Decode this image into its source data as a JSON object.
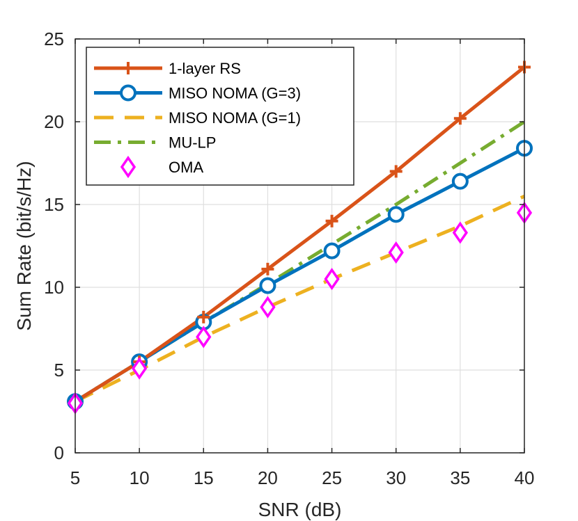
{
  "chart_data": {
    "type": "line",
    "xlabel": "SNR (dB)",
    "ylabel": "Sum Rate (bit/s/Hz)",
    "x": [
      5,
      10,
      15,
      20,
      25,
      30,
      35,
      40
    ],
    "xlim": [
      5,
      40
    ],
    "ylim": [
      0,
      25
    ],
    "xticks": [
      5,
      10,
      15,
      20,
      25,
      30,
      35,
      40
    ],
    "xtick_labels": [
      "5",
      "10",
      "15",
      "20",
      "25",
      "30",
      "35",
      "40"
    ],
    "yticks": [
      0,
      5,
      10,
      15,
      20,
      25
    ],
    "ytick_labels": [
      "0",
      "5",
      "10",
      "15",
      "20",
      "25"
    ],
    "grid": true,
    "legend_position": "top-left",
    "series": [
      {
        "name": "1-layer RS",
        "color": "#D95319",
        "line": "solid",
        "marker": "plus",
        "values": [
          3.1,
          5.5,
          8.2,
          11.1,
          14.0,
          17.0,
          20.2,
          23.3
        ]
      },
      {
        "name": "MISO NOMA (G=3)",
        "color": "#0072BD",
        "line": "solid",
        "marker": "circle",
        "values": [
          3.1,
          5.5,
          7.9,
          10.1,
          12.2,
          14.4,
          16.4,
          18.4
        ]
      },
      {
        "name": "MISO NOMA (G=1)",
        "color": "#EDB120",
        "line": "dashed",
        "marker": "none",
        "values": [
          3.1,
          5.0,
          7.0,
          8.8,
          10.5,
          12.1,
          13.7,
          15.5
        ]
      },
      {
        "name": "MU-LP",
        "color": "#77AC30",
        "line": "dashdot",
        "marker": "none",
        "values": [
          3.1,
          5.5,
          7.9,
          10.2,
          12.6,
          15.0,
          17.5,
          20.0
        ]
      },
      {
        "name": "OMA",
        "color": "#FF00FF",
        "line": "none",
        "marker": "diamond",
        "values": [
          3.0,
          5.1,
          7.0,
          8.8,
          10.5,
          12.1,
          13.3,
          14.5
        ]
      }
    ]
  }
}
